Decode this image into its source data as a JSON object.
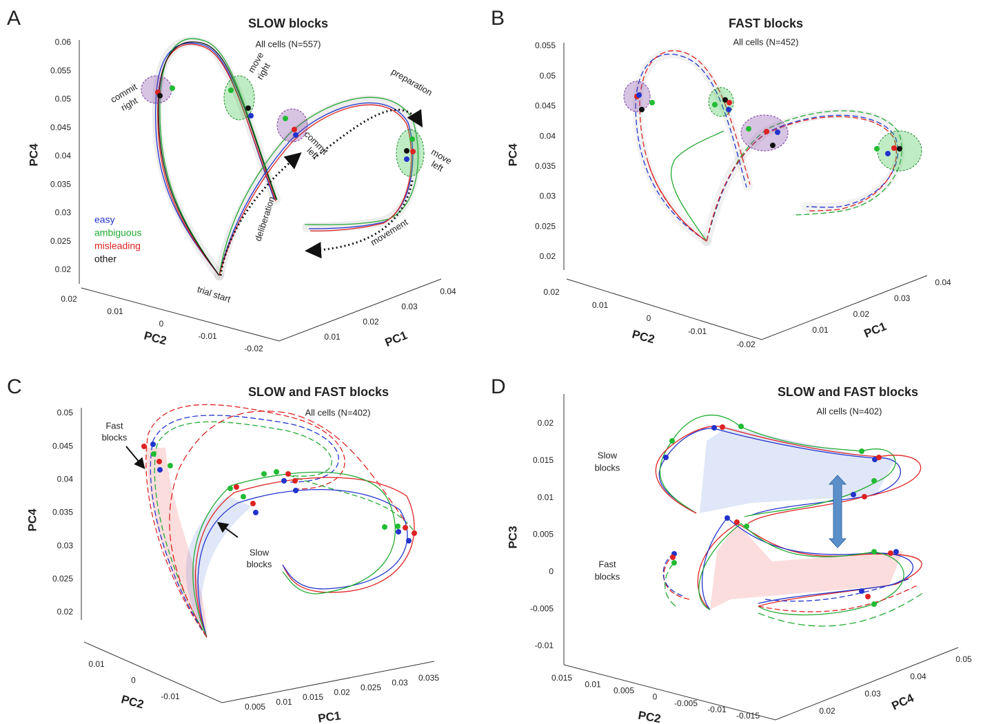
{
  "panels": [
    {
      "letter": "A",
      "title": "SLOW blocks",
      "subtitle": "All cells (N=557)",
      "axes": [
        {
          "label": "PC4",
          "ticks": [
            "0.06",
            "0.055",
            "0.05",
            "0.045",
            "0.04",
            "0.035",
            "0.03",
            "0.025",
            "0.02"
          ]
        },
        {
          "label": "PC2",
          "ticks": [
            "0.02",
            "0.01",
            "0",
            "-0.01",
            "-0.02"
          ]
        },
        {
          "label": "PC1",
          "ticks": [
            "0.01",
            "0.02",
            "0.03",
            "0.04"
          ]
        }
      ],
      "legend": [
        "easy",
        "ambiguous",
        "misleading",
        "other"
      ],
      "annotations": [
        [
          "commit",
          "right"
        ],
        [
          "move",
          "right"
        ],
        [
          "preparation"
        ],
        [
          "commit",
          "left"
        ],
        [
          "move",
          "left"
        ],
        [
          "deliberation"
        ],
        [
          "movement"
        ],
        [
          "trial start"
        ]
      ]
    },
    {
      "letter": "B",
      "title": "FAST blocks",
      "subtitle": "All cells (N=452)",
      "axes": [
        {
          "label": "PC4",
          "ticks": [
            "0.055",
            "0.05",
            "0.045",
            "0.04",
            "0.035",
            "0.03",
            "0.025",
            "0.02"
          ]
        },
        {
          "label": "PC2",
          "ticks": [
            "0.02",
            "0.01",
            "0",
            "-0.01",
            "-0.02"
          ]
        },
        {
          "label": "PC1",
          "ticks": [
            "0.01",
            "0.02",
            "0.03",
            "0.04"
          ]
        }
      ],
      "annotations": []
    },
    {
      "letter": "C",
      "title": "SLOW and FAST blocks",
      "subtitle": "All cells (N=402)",
      "axes": [
        {
          "label": "PC4",
          "ticks": [
            "0.05",
            "0.045",
            "0.04",
            "0.035",
            "0.03",
            "0.025",
            "0.02"
          ]
        },
        {
          "label": "PC2",
          "ticks": [
            "0.01",
            "0",
            "-0.01"
          ]
        },
        {
          "label": "PC1",
          "ticks": [
            "0.005",
            "0.01",
            "0.015",
            "0.02",
            "0.025",
            "0.03",
            "0.035"
          ]
        }
      ],
      "annotations": [
        [
          "Fast",
          "blocks"
        ],
        [
          "Slow",
          "blocks"
        ]
      ]
    },
    {
      "letter": "D",
      "title": "SLOW and FAST blocks",
      "subtitle": "All cells (N=402)",
      "axes": [
        {
          "label": "PC3",
          "ticks": [
            "0.02",
            "0.015",
            "0.01",
            "0.005",
            "0",
            "-0.005",
            "-0.01"
          ]
        },
        {
          "label": "PC2",
          "ticks": [
            "0.015",
            "0.01",
            "0.005",
            "0",
            "-0.005",
            "-0.01",
            "-0.015"
          ]
        },
        {
          "label": "PC4",
          "ticks": [
            "0.02",
            "0.03",
            "0.04",
            "0.05"
          ]
        }
      ],
      "annotations": [
        [
          "Slow",
          "blocks"
        ],
        [
          "Fast",
          "blocks"
        ]
      ]
    }
  ]
}
